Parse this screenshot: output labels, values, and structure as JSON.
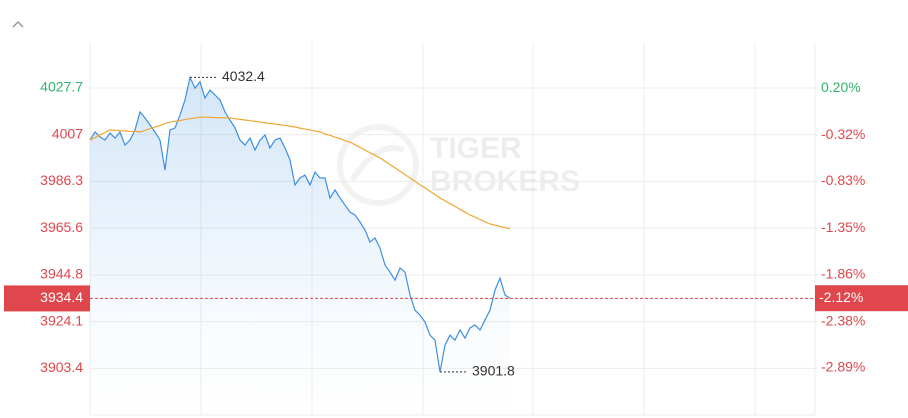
{
  "chart_data": {
    "type": "line",
    "ylim": [
      3882.7,
      4048.1
    ],
    "yticks": [
      4027.7,
      4007.0,
      3986.3,
      3965.6,
      3944.8,
      3924.1,
      3903.4
    ],
    "y2lim": [
      -3.41,
      0.71
    ],
    "y2ticks": [
      {
        "value": 0.2,
        "label": "0.20%"
      },
      {
        "value": -0.32,
        "label": "-0.32%"
      },
      {
        "value": -0.83,
        "label": "-0.83%"
      },
      {
        "value": -1.35,
        "label": "-1.35%"
      },
      {
        "value": -1.86,
        "label": "-1.86%"
      },
      {
        "value": -2.38,
        "label": "-2.38%"
      },
      {
        "value": -2.89,
        "label": "-2.89%"
      }
    ],
    "up_color": "#2fb36d",
    "down_color": "#e0474c",
    "grid": true,
    "series": [
      {
        "color": "#3d8fe0",
        "values": [
          4004.6,
          4008.2,
          4006.0,
          4004.6,
          4007.7,
          4005.5,
          4008.2,
          4002.4,
          4004.6,
          4009.1,
          4017.1,
          4014.4,
          4011.3,
          4008.2,
          4004.6,
          3991.3,
          4009.1,
          4010.0,
          4015.7,
          4022.4,
          4032.4,
          4027.7,
          4030.4,
          4023.3,
          4026.8,
          4024.6,
          4022.4,
          4017.1,
          4013.5,
          4010.0,
          4004.6,
          4002.4,
          4005.5,
          4000.2,
          4004.6,
          4006.9,
          4001.1,
          4004.6,
          4005.5,
          4001.1,
          3995.8,
          3984.7,
          3987.8,
          3989.1,
          3984.7,
          3990.4,
          3987.8,
          3987.8,
          3978.9,
          3982.5,
          3978.9,
          3975.8,
          3972.7,
          3971.4,
          3968.3,
          3964.7,
          3959.4,
          3961.2,
          3956.7,
          3949.2,
          3946.1,
          3942.5,
          3947.9,
          3946.1,
          3935.9,
          3929.2,
          3927.0,
          3923.9,
          3918.1,
          3915.9,
          3901.8,
          3913.7,
          3918.1,
          3915.9,
          3920.4,
          3916.8,
          3921.3,
          3922.6,
          3920.4,
          3924.8,
          3929.2,
          3938.1,
          3943.4,
          3935.9,
          3934.4
        ]
      },
      {
        "color": "#f0a732",
        "values": [
          4004.6,
          4005.7,
          4006.9,
          4008.0,
          4009.1,
          4009.0,
          4008.8,
          4008.7,
          4008.5,
          4008.4,
          4008.2,
          4008.9,
          4009.7,
          4010.4,
          4011.1,
          4011.9,
          4012.6,
          4013.0,
          4013.3,
          4013.7,
          4014.1,
          4014.4,
          4014.8,
          4014.7,
          4014.7,
          4014.6,
          4014.5,
          4014.5,
          4014.4,
          4014.1,
          4013.8,
          4013.5,
          4013.2,
          4012.9,
          4012.6,
          4012.3,
          4012.0,
          4011.7,
          4011.4,
          4011.1,
          4010.8,
          4010.4,
          4009.9,
          4009.5,
          4009.1,
          4008.6,
          4008.2,
          4007.4,
          4006.7,
          4005.9,
          4005.2,
          4004.4,
          4003.7,
          4002.5,
          4001.4,
          4000.2,
          3999.0,
          3997.9,
          3996.7,
          3995.2,
          3993.7,
          3992.3,
          3990.8,
          3989.3,
          3987.8,
          3986.3,
          3984.8,
          3983.4,
          3981.9,
          3980.4,
          3978.9,
          3977.7,
          3976.4,
          3975.2,
          3973.9,
          3972.7,
          3971.4,
          3970.4,
          3969.4,
          3968.4,
          3967.4,
          3966.9,
          3966.3,
          3965.8,
          3965.2
        ]
      }
    ],
    "high": 4032.4,
    "low": 3901.8,
    "last_price": 3934.4,
    "last_change": {
      "value": -2.12,
      "label": "-2.12%"
    },
    "watermark": [
      "TIGER",
      "BROKERS"
    ]
  }
}
